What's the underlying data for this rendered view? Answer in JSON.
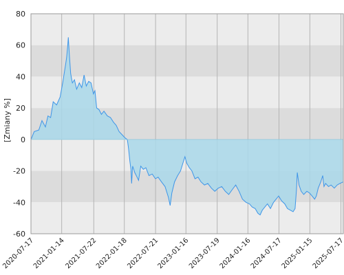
{
  "chart_data": {
    "type": "area",
    "ylabel": "[Zmiany %]",
    "xlabel": "",
    "title": "",
    "x_range": [
      "2020-07-17",
      "2025-07-31"
    ],
    "ylim": [
      -60,
      80
    ],
    "y_ticks": [
      80,
      60,
      40,
      20,
      0,
      -20,
      -40,
      -60
    ],
    "x_tick_labels": [
      "2020-07-17",
      "2021-01-14",
      "2021-07-22",
      "2022-01-18",
      "2022-07-21",
      "2023-01-16",
      "2023-07-19",
      "2024-01-16",
      "2024-07-17",
      "2025-01-15",
      "2025-07-17"
    ],
    "grid": true,
    "banded_background": true,
    "colors": {
      "line": "#3d95e8",
      "fill": "#a9d8ea",
      "band_dark": "#dcdcdc",
      "band_light": "#ececec",
      "grid": "#b4b4b4"
    },
    "series": [
      {
        "points": [
          [
            "2020-07-17",
            0
          ],
          [
            "2020-08-05",
            5
          ],
          [
            "2020-09-01",
            6
          ],
          [
            "2020-09-20",
            12
          ],
          [
            "2020-10-10",
            8
          ],
          [
            "2020-10-25",
            15
          ],
          [
            "2020-11-10",
            14
          ],
          [
            "2020-11-25",
            24
          ],
          [
            "2020-12-15",
            22
          ],
          [
            "2021-01-05",
            27
          ],
          [
            "2021-01-20",
            36
          ],
          [
            "2021-02-05",
            47
          ],
          [
            "2021-02-12",
            52
          ],
          [
            "2021-02-18",
            59
          ],
          [
            "2021-02-22",
            65
          ],
          [
            "2021-02-28",
            54
          ],
          [
            "2021-03-08",
            42
          ],
          [
            "2021-03-18",
            36
          ],
          [
            "2021-03-30",
            38
          ],
          [
            "2021-04-12",
            32
          ],
          [
            "2021-04-28",
            36
          ],
          [
            "2021-05-12",
            33
          ],
          [
            "2021-05-26",
            41
          ],
          [
            "2021-06-08",
            34
          ],
          [
            "2021-06-22",
            37
          ],
          [
            "2021-07-06",
            36
          ],
          [
            "2021-07-20",
            29
          ],
          [
            "2021-07-29",
            31
          ],
          [
            "2021-08-08",
            20
          ],
          [
            "2021-08-22",
            19
          ],
          [
            "2021-09-05",
            16
          ],
          [
            "2021-09-20",
            18
          ],
          [
            "2021-10-10",
            15
          ],
          [
            "2021-10-28",
            14
          ],
          [
            "2021-11-15",
            11
          ],
          [
            "2021-12-01",
            9
          ],
          [
            "2021-12-18",
            5
          ],
          [
            "2022-01-05",
            3
          ],
          [
            "2022-01-22",
            1
          ],
          [
            "2022-02-05",
            0
          ],
          [
            "2022-02-12",
            -6
          ],
          [
            "2022-02-20",
            -14
          ],
          [
            "2022-02-26",
            -19
          ],
          [
            "2022-03-02",
            -28
          ],
          [
            "2022-03-08",
            -17
          ],
          [
            "2022-03-20",
            -21
          ],
          [
            "2022-04-03",
            -24
          ],
          [
            "2022-04-12",
            -26
          ],
          [
            "2022-04-25",
            -17
          ],
          [
            "2022-05-10",
            -19
          ],
          [
            "2022-05-25",
            -18
          ],
          [
            "2022-06-12",
            -23
          ],
          [
            "2022-07-01",
            -22
          ],
          [
            "2022-07-20",
            -25
          ],
          [
            "2022-08-05",
            -24
          ],
          [
            "2022-08-25",
            -27
          ],
          [
            "2022-09-15",
            -30
          ],
          [
            "2022-10-05",
            -37
          ],
          [
            "2022-10-15",
            -42
          ],
          [
            "2022-10-25",
            -34
          ],
          [
            "2022-11-10",
            -27
          ],
          [
            "2022-11-28",
            -23
          ],
          [
            "2022-12-15",
            -20
          ],
          [
            "2023-01-01",
            -14
          ],
          [
            "2023-01-10",
            -11
          ],
          [
            "2023-01-20",
            -15
          ],
          [
            "2023-02-05",
            -18
          ],
          [
            "2023-02-20",
            -20
          ],
          [
            "2023-03-10",
            -25
          ],
          [
            "2023-03-28",
            -24
          ],
          [
            "2023-04-15",
            -27
          ],
          [
            "2023-05-05",
            -29
          ],
          [
            "2023-05-25",
            -28
          ],
          [
            "2023-06-15",
            -31
          ],
          [
            "2023-07-05",
            -33
          ],
          [
            "2023-07-25",
            -31
          ],
          [
            "2023-08-15",
            -30
          ],
          [
            "2023-09-05",
            -33
          ],
          [
            "2023-09-25",
            -35
          ],
          [
            "2023-10-15",
            -32
          ],
          [
            "2023-11-05",
            -29
          ],
          [
            "2023-11-25",
            -33
          ],
          [
            "2023-12-15",
            -38
          ],
          [
            "2024-01-05",
            -40
          ],
          [
            "2024-01-25",
            -41
          ],
          [
            "2024-02-10",
            -43
          ],
          [
            "2024-02-28",
            -44
          ],
          [
            "2024-03-15",
            -47
          ],
          [
            "2024-03-28",
            -48
          ],
          [
            "2024-04-10",
            -45
          ],
          [
            "2024-04-25",
            -43
          ],
          [
            "2024-05-10",
            -41
          ],
          [
            "2024-05-28",
            -44
          ],
          [
            "2024-06-15",
            -40
          ],
          [
            "2024-06-30",
            -38
          ],
          [
            "2024-07-15",
            -36
          ],
          [
            "2024-08-01",
            -39
          ],
          [
            "2024-08-20",
            -41
          ],
          [
            "2024-09-05",
            -44
          ],
          [
            "2024-09-22",
            -45
          ],
          [
            "2024-10-08",
            -46
          ],
          [
            "2024-10-20",
            -44
          ],
          [
            "2024-10-28",
            -32
          ],
          [
            "2024-11-02",
            -21
          ],
          [
            "2024-11-12",
            -29
          ],
          [
            "2024-11-25",
            -33
          ],
          [
            "2024-12-10",
            -35
          ],
          [
            "2024-12-28",
            -33
          ],
          [
            "2025-01-12",
            -34
          ],
          [
            "2025-01-28",
            -36
          ],
          [
            "2025-02-12",
            -38
          ],
          [
            "2025-02-22",
            -36
          ],
          [
            "2025-03-05",
            -31
          ],
          [
            "2025-03-20",
            -27
          ],
          [
            "2025-04-01",
            -23
          ],
          [
            "2025-04-08",
            -30
          ],
          [
            "2025-04-18",
            -28
          ],
          [
            "2025-05-05",
            -30
          ],
          [
            "2025-05-20",
            -29
          ],
          [
            "2025-06-08",
            -31
          ],
          [
            "2025-06-25",
            -29
          ],
          [
            "2025-07-10",
            -28
          ],
          [
            "2025-07-31",
            -27
          ]
        ]
      }
    ]
  }
}
